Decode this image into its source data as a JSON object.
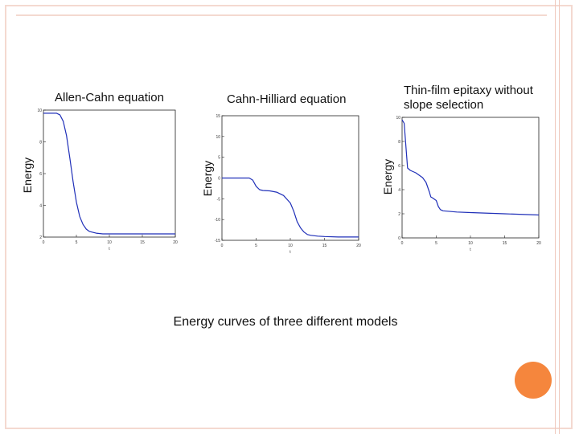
{
  "caption": "Energy curves of three different models",
  "colors": {
    "curve": "#1f2fb8",
    "frame_border": "#f4d9d0",
    "accent": "#f5863d"
  },
  "decoration": "orange-circle",
  "chart_data": [
    {
      "type": "line",
      "title": "Allen-Cahn equation",
      "xlabel": "t",
      "ylabel": "Energy",
      "xlim": [
        0,
        20
      ],
      "ylim": [
        2,
        10
      ],
      "xticks": [
        "0",
        "5",
        "10",
        "15",
        "20"
      ],
      "yticks": [
        "2",
        "4",
        "6",
        "8",
        "10"
      ],
      "series": [
        {
          "x": [
            0,
            1,
            2,
            2.5,
            3,
            3.5,
            4,
            4.5,
            5,
            5.5,
            6,
            6.5,
            7,
            7.5,
            8,
            9,
            10,
            12,
            15,
            20
          ],
          "y": [
            9.8,
            9.8,
            9.8,
            9.7,
            9.3,
            8.4,
            7.0,
            5.5,
            4.2,
            3.3,
            2.8,
            2.5,
            2.35,
            2.3,
            2.25,
            2.2,
            2.2,
            2.2,
            2.2,
            2.2
          ]
        }
      ]
    },
    {
      "type": "line",
      "title": "Cahn-Hilliard equation",
      "xlabel": "t",
      "ylabel": "Energy",
      "xlim": [
        0,
        20
      ],
      "ylim": [
        -15,
        15
      ],
      "xticks": [
        "0",
        "5",
        "10",
        "15",
        "20"
      ],
      "yticks": [
        "-15",
        "-10",
        "-5",
        "0",
        "5",
        "10",
        "15"
      ],
      "series": [
        {
          "x": [
            0,
            2,
            4,
            4.5,
            5,
            5.5,
            6,
            7,
            8,
            9,
            10,
            10.5,
            11,
            11.5,
            12,
            12.5,
            13,
            14,
            15,
            17,
            20
          ],
          "y": [
            0,
            0,
            0,
            -0.5,
            -2.0,
            -2.8,
            -3.0,
            -3.1,
            -3.4,
            -4.2,
            -6.0,
            -8.0,
            -10.5,
            -12.0,
            -13.0,
            -13.6,
            -13.8,
            -14.0,
            -14.1,
            -14.2,
            -14.2
          ]
        }
      ]
    },
    {
      "type": "line",
      "title": "Thin-film epitaxy without slope selection",
      "xlabel": "t",
      "ylabel": "Energy",
      "xlim": [
        0,
        20
      ],
      "ylim": [
        0,
        10
      ],
      "xticks": [
        "0",
        "5",
        "10",
        "15",
        "20"
      ],
      "yticks": [
        "0",
        "2",
        "4",
        "6",
        "8",
        "10"
      ],
      "series": [
        {
          "x": [
            0,
            0.3,
            0.5,
            0.8,
            1.2,
            2,
            3,
            3.5,
            4,
            4.2,
            4.5,
            5,
            5.3,
            5.6,
            6,
            8,
            10,
            15,
            20
          ],
          "y": [
            9.8,
            9.5,
            8.0,
            5.8,
            5.6,
            5.4,
            5.0,
            4.6,
            3.8,
            3.4,
            3.3,
            3.1,
            2.6,
            2.35,
            2.25,
            2.15,
            2.1,
            2.0,
            1.9
          ]
        }
      ]
    }
  ]
}
